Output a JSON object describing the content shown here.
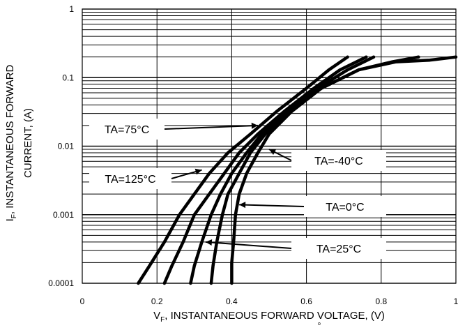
{
  "chart_data": {
    "type": "line",
    "xlabel": "V_F, INSTANTANEOUS FORWARD VOLTAGE, (V)",
    "xlabel_parts": {
      "main": "V",
      "sub": "F",
      "rest": ", INSTANTANEOUS FORWARD VOLTAGE, (V)"
    },
    "ylabel": "I_F, INSTANTANEOUS FORWARD CURRENT, (A)",
    "ylabel_parts": {
      "main": "I",
      "sub": "F",
      "line1_rest": ", INSTANTANEOUS FORWARD",
      "line2": "CURRENT, (A)"
    },
    "xlim": [
      0,
      1
    ],
    "ylim": [
      0.0001,
      1
    ],
    "y_scale": "log",
    "grid": true,
    "x_ticks": [
      {
        "value": 0,
        "label": "0"
      },
      {
        "value": 0.2,
        "label": "0.2"
      },
      {
        "value": 0.4,
        "label": "0.4"
      },
      {
        "value": 0.6,
        "label": "0.6"
      },
      {
        "value": 0.8,
        "label": "0.8"
      },
      {
        "value": 1,
        "label": "1"
      }
    ],
    "y_ticks": [
      {
        "value": 0.0001,
        "label": "0.0001"
      },
      {
        "value": 0.001,
        "label": "0.001"
      },
      {
        "value": 0.01,
        "label": "0.01"
      },
      {
        "value": 0.1,
        "label": "0.1"
      },
      {
        "value": 1,
        "label": "1"
      }
    ],
    "series": [
      {
        "name": "TA=125°C",
        "x": [
          0.15,
          0.18,
          0.22,
          0.26,
          0.3,
          0.34,
          0.39,
          0.45,
          0.52,
          0.6,
          0.66,
          0.71
        ],
        "y": [
          0.0001,
          0.00018,
          0.0004,
          0.001,
          0.002,
          0.004,
          0.008,
          0.015,
          0.032,
          0.07,
          0.13,
          0.2
        ]
      },
      {
        "name": "TA=75°C",
        "x": [
          0.22,
          0.24,
          0.27,
          0.3,
          0.34,
          0.38,
          0.42,
          0.47,
          0.54,
          0.62,
          0.69,
          0.76
        ],
        "y": [
          0.0001,
          0.00018,
          0.0004,
          0.001,
          0.002,
          0.004,
          0.008,
          0.015,
          0.032,
          0.07,
          0.13,
          0.2
        ]
      },
      {
        "name": "TA=25°C",
        "x": [
          0.29,
          0.3,
          0.32,
          0.345,
          0.37,
          0.4,
          0.44,
          0.48,
          0.55,
          0.63,
          0.71,
          0.78
        ],
        "y": [
          0.0001,
          0.00018,
          0.0004,
          0.001,
          0.002,
          0.004,
          0.008,
          0.015,
          0.032,
          0.07,
          0.13,
          0.2
        ]
      },
      {
        "name": "TA=0°C",
        "x": [
          0.345,
          0.35,
          0.36,
          0.375,
          0.39,
          0.42,
          0.45,
          0.49,
          0.55,
          0.64,
          0.74,
          0.83,
          0.9
        ],
        "y": [
          0.0001,
          0.00018,
          0.0004,
          0.001,
          0.002,
          0.004,
          0.008,
          0.015,
          0.032,
          0.07,
          0.13,
          0.17,
          0.2
        ]
      },
      {
        "name": "TA=-40°C",
        "x": [
          0.4,
          0.4,
          0.405,
          0.41,
          0.42,
          0.44,
          0.47,
          0.5,
          0.56,
          0.64,
          0.74,
          0.84,
          0.93,
          1.0
        ],
        "y": [
          0.0001,
          0.0002,
          0.0004,
          0.001,
          0.002,
          0.004,
          0.008,
          0.015,
          0.032,
          0.07,
          0.13,
          0.17,
          0.18,
          0.2
        ]
      }
    ],
    "annotations": [
      {
        "label": "TA=75°C",
        "arrow_to": {
          "x": 0.47,
          "y": 0.02
        }
      },
      {
        "label": "TA=125°C",
        "arrow_to": {
          "x": 0.32,
          "y": 0.0045
        }
      },
      {
        "label": "TA=-40°C",
        "arrow_to": {
          "x": 0.5,
          "y": 0.009
        }
      },
      {
        "label": "TA=0°C",
        "arrow_to": {
          "x": 0.42,
          "y": 0.0014
        }
      },
      {
        "label": "TA=25°C",
        "arrow_to": {
          "x": 0.33,
          "y": 0.0004
        }
      }
    ],
    "stray_mark": "o"
  }
}
